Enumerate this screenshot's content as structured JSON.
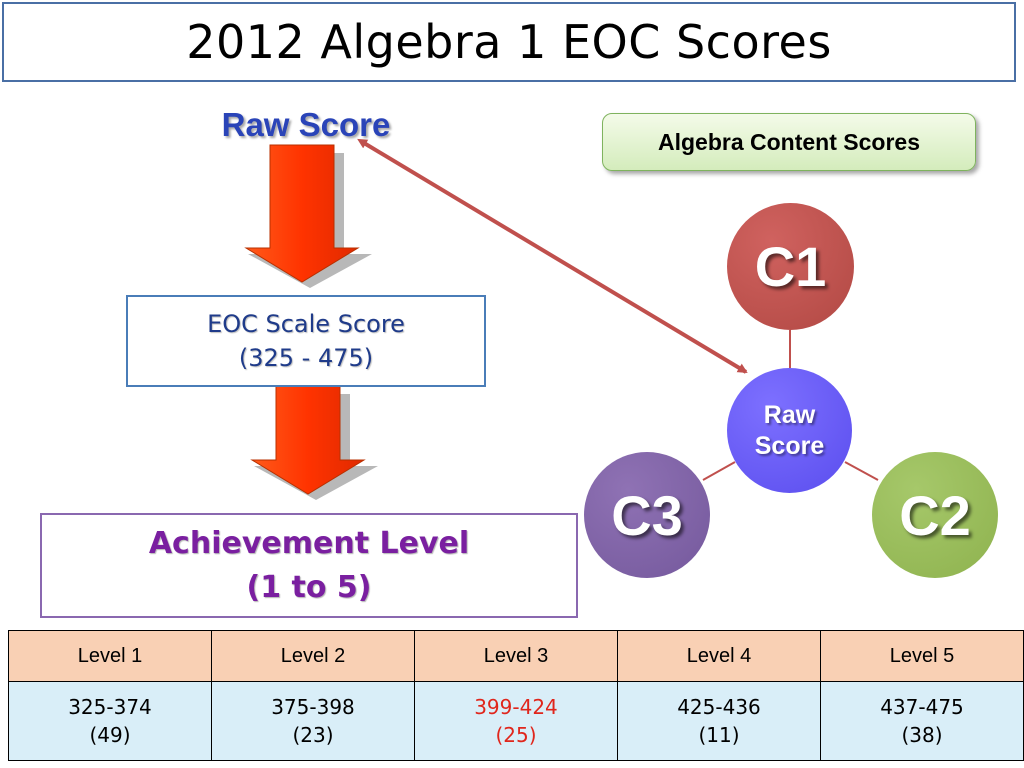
{
  "title": "2012 Algebra 1 EOC Scores",
  "raw_score_label": "Raw Score",
  "content_scores_label": "Algebra Content Scores",
  "scale_score": {
    "line1": "EOC Scale Score",
    "line2": "(325 - 475)"
  },
  "achievement": {
    "line1": "Achievement Level",
    "line2": "(1 to 5)"
  },
  "circles": {
    "c1": "C1",
    "c2": "C2",
    "c3": "C3",
    "center_line1": "Raw",
    "center_line2": "Score"
  },
  "levels_table": {
    "headers": [
      "Level 1",
      "Level 2",
      "Level 3",
      "Level 4",
      "Level 5"
    ],
    "ranges": [
      "325-374",
      "375-398",
      "399-424",
      "425-436",
      "437-475"
    ],
    "counts": [
      "(49)",
      "(23)",
      "(25)",
      "(11)",
      "(38)"
    ],
    "highlight_index": 2
  },
  "colors": {
    "arrow_red": "#ff3a00",
    "connector": "#c0504d",
    "highlight": "#e0261c"
  }
}
